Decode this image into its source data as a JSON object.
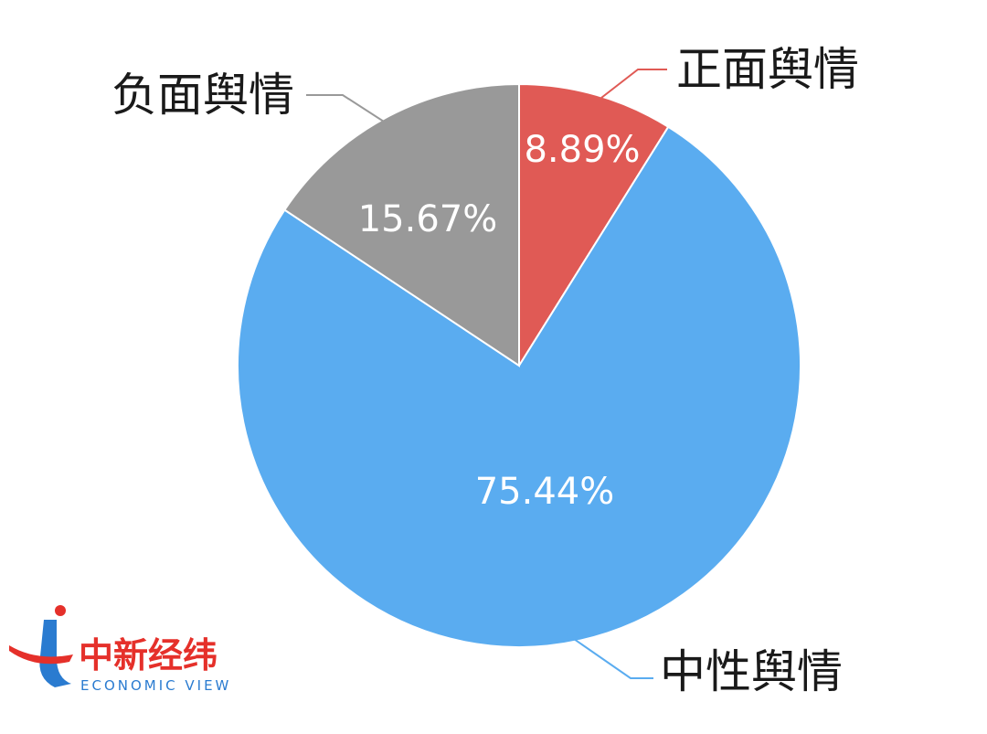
{
  "chart_data": {
    "type": "pie",
    "start_angle_deg": 0,
    "direction": "clockwise",
    "slices": [
      {
        "name": "正面舆情",
        "value": 8.89,
        "label": "8.89%",
        "color": "#e05a55",
        "leader_color": "#e05a55"
      },
      {
        "name": "中性舆情",
        "value": 75.44,
        "label": "75.44%",
        "color": "#5aacf0",
        "leader_color": "#5aacf0"
      },
      {
        "name": "负面舆情",
        "value": 15.67,
        "label": "15.67%",
        "color": "#999999",
        "leader_color": "#999999"
      }
    ]
  },
  "logo": {
    "name_cn": "中新经纬",
    "name_en": "ECONOMIC VIEW"
  }
}
